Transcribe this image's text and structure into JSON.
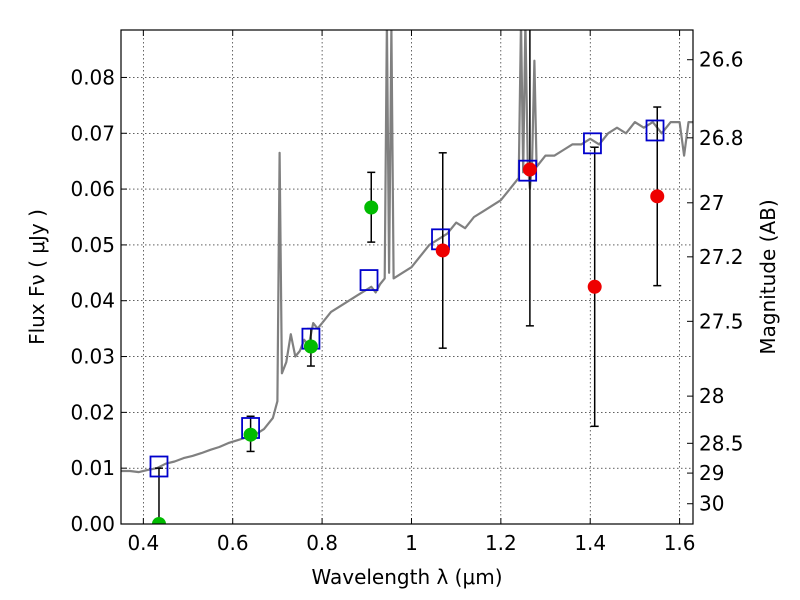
{
  "chart_data": {
    "type": "scatter",
    "xlabel": "Wavelength  λ (μm)",
    "ylabel": "Flux  Fν  ( μJy )",
    "ylabel_right": "Magnitude (AB)",
    "xlim": [
      0.35,
      1.63
    ],
    "ylim": [
      0.0,
      0.0885
    ],
    "grid": true,
    "x_ticks": [
      {
        "value": 0.4,
        "label": "0.4"
      },
      {
        "value": 0.6,
        "label": "0.6"
      },
      {
        "value": 0.8,
        "label": "0.8"
      },
      {
        "value": 1.0,
        "label": "1"
      },
      {
        "value": 1.2,
        "label": "1.2"
      },
      {
        "value": 1.4,
        "label": "1.4"
      },
      {
        "value": 1.6,
        "label": "1.6"
      }
    ],
    "y_ticks": [
      {
        "value": 0.0,
        "label": "0.00"
      },
      {
        "value": 0.01,
        "label": "0.01"
      },
      {
        "value": 0.02,
        "label": "0.02"
      },
      {
        "value": 0.03,
        "label": "0.03"
      },
      {
        "value": 0.04,
        "label": "0.04"
      },
      {
        "value": 0.05,
        "label": "0.05"
      },
      {
        "value": 0.06,
        "label": "0.06"
      },
      {
        "value": 0.07,
        "label": "0.07"
      },
      {
        "value": 0.08,
        "label": "0.08"
      }
    ],
    "right_ticks": [
      {
        "value": 26.6,
        "label": "26.6"
      },
      {
        "value": 26.8,
        "label": "26.8"
      },
      {
        "value": 27.0,
        "label": "27"
      },
      {
        "value": 27.2,
        "label": "27.2"
      },
      {
        "value": 27.5,
        "label": "27.5"
      },
      {
        "value": 28.0,
        "label": "28"
      },
      {
        "value": 28.5,
        "label": "28.5"
      },
      {
        "value": 29.0,
        "label": "29"
      },
      {
        "value": 30.0,
        "label": "30"
      }
    ],
    "colors": {
      "spectrum": "#808080",
      "model_box": "#0000cc",
      "detection": "#00bb00",
      "upper": "#ee0000",
      "errorbar": "#000000",
      "grid": "#000000"
    },
    "spectrum": {
      "name": "",
      "x": [
        0.35,
        0.37,
        0.39,
        0.41,
        0.43,
        0.45,
        0.47,
        0.49,
        0.51,
        0.53,
        0.55,
        0.57,
        0.59,
        0.61,
        0.63,
        0.65,
        0.67,
        0.69,
        0.7,
        0.705,
        0.71,
        0.72,
        0.73,
        0.74,
        0.75,
        0.76,
        0.77,
        0.78,
        0.79,
        0.8,
        0.82,
        0.84,
        0.86,
        0.88,
        0.9,
        0.91,
        0.92,
        0.93,
        0.94,
        0.945,
        0.95,
        0.955,
        0.96,
        0.98,
        1.0,
        1.02,
        1.04,
        1.06,
        1.08,
        1.1,
        1.12,
        1.14,
        1.16,
        1.18,
        1.2,
        1.22,
        1.24,
        1.245,
        1.25,
        1.255,
        1.26,
        1.265,
        1.27,
        1.275,
        1.28,
        1.3,
        1.32,
        1.34,
        1.36,
        1.38,
        1.4,
        1.42,
        1.44,
        1.46,
        1.48,
        1.5,
        1.52,
        1.54,
        1.56,
        1.58,
        1.6,
        1.61,
        1.62,
        1.63
      ],
      "y": [
        0.0095,
        0.0095,
        0.0093,
        0.0097,
        0.01,
        0.0108,
        0.0112,
        0.0118,
        0.0122,
        0.0127,
        0.0133,
        0.0138,
        0.0145,
        0.015,
        0.0155,
        0.016,
        0.017,
        0.019,
        0.022,
        0.0665,
        0.027,
        0.029,
        0.034,
        0.03,
        0.031,
        0.033,
        0.032,
        0.036,
        0.035,
        0.036,
        0.038,
        0.039,
        0.04,
        0.041,
        0.042,
        0.0425,
        0.0415,
        0.043,
        0.044,
        0.09,
        0.045,
        0.089,
        0.044,
        0.045,
        0.046,
        0.048,
        0.05,
        0.051,
        0.052,
        0.054,
        0.053,
        0.055,
        0.056,
        0.057,
        0.058,
        0.06,
        0.062,
        0.09,
        0.063,
        0.09,
        0.065,
        0.06,
        0.065,
        0.083,
        0.064,
        0.066,
        0.066,
        0.067,
        0.068,
        0.068,
        0.069,
        0.068,
        0.07,
        0.071,
        0.07,
        0.072,
        0.071,
        0.072,
        0.07,
        0.072,
        0.072,
        0.066,
        0.072,
        0.072
      ]
    },
    "model_points": {
      "name": "",
      "x": [
        0.435,
        0.64,
        0.775,
        0.905,
        1.065,
        1.26,
        1.405,
        1.545
      ],
      "y": [
        0.0103,
        0.0172,
        0.0332,
        0.0437,
        0.051,
        0.0633,
        0.0682,
        0.0705
      ]
    },
    "detections": {
      "name": "",
      "x": [
        0.435,
        0.64,
        0.775,
        0.91
      ],
      "y": [
        0.0,
        0.016,
        0.0318,
        0.0567
      ],
      "err_low": [
        0.0,
        0.003,
        0.0035,
        0.0062
      ],
      "err_high": [
        0.01,
        0.0033,
        0.0032,
        0.0063
      ]
    },
    "upper_limits": {
      "name": "",
      "x": [
        1.07,
        1.265,
        1.41,
        1.55
      ],
      "y": [
        0.049,
        0.0635,
        0.0425,
        0.0587
      ],
      "err_low": [
        0.0175,
        0.028,
        0.025,
        0.016
      ],
      "err_high": [
        0.0175,
        0.0265,
        0.025,
        0.016
      ]
    }
  }
}
